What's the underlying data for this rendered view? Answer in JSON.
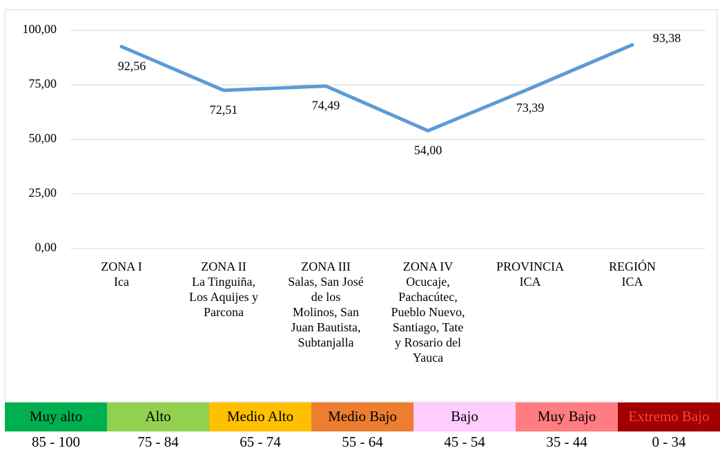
{
  "chart_data": {
    "type": "line",
    "categories": [
      "ZONA I\nIca",
      "ZONA II\nLa Tinguiña,\nLos Aquijes y\nParcona",
      "ZONA III\nSalas, San José\nde los\nMolinos, San\nJuan Bautista,\nSubtanjalla",
      "ZONA IV\nOcucaje,\nPachacútec,\nPueblo Nuevo,\nSantiago, Tate\ny Rosario del\nYauca",
      "PROVINCIA\nICA",
      "REGIÓN\nICA"
    ],
    "values": [
      92.56,
      72.51,
      74.49,
      54.0,
      73.39,
      93.38
    ],
    "value_labels": [
      "92,56",
      "72,51",
      "74,49",
      "54,00",
      "73,39",
      "93,38"
    ],
    "color": "#5b9bd5",
    "ylim": [
      0,
      100
    ],
    "yticks": [
      {
        "value": 0,
        "label": "0,00"
      },
      {
        "value": 25,
        "label": "25,00"
      },
      {
        "value": 50,
        "label": "50,00"
      },
      {
        "value": 75,
        "label": "75,00"
      },
      {
        "value": 100,
        "label": "100,00"
      }
    ],
    "grid": true
  },
  "scale_table": [
    {
      "label": "Muy alto",
      "range": "85 - 100",
      "color": "#00b050",
      "text_color": "#000000"
    },
    {
      "label": "Alto",
      "range": "75 - 84",
      "color": "#92d050",
      "text_color": "#000000"
    },
    {
      "label": "Medio Alto",
      "range": "65 - 74",
      "color": "#ffc000",
      "text_color": "#000000"
    },
    {
      "label": "Medio Bajo",
      "range": "55 - 64",
      "color": "#ed7d31",
      "text_color": "#000000"
    },
    {
      "label": "Bajo",
      "range": "45 - 54",
      "color": "#ffccff",
      "text_color": "#000000"
    },
    {
      "label": "Muy Bajo",
      "range": "35 - 44",
      "color": "#ff7c80",
      "text_color": "#000000"
    },
    {
      "label": "Extremo Bajo",
      "range": "0 - 34",
      "color": "#a00000",
      "text_color": "#ff4040"
    }
  ]
}
